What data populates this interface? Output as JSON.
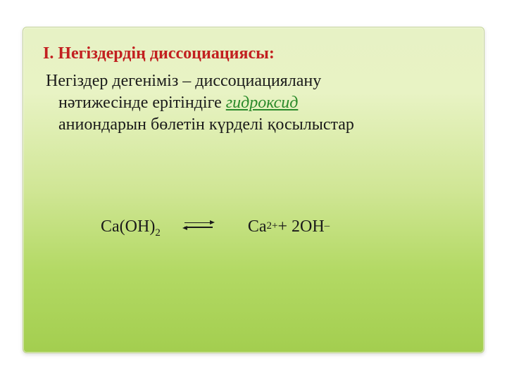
{
  "slide": {
    "heading": "I. Негіздердің диссоциациясы:",
    "definition_line1": "Негіздер дегеніміз – диссоциациялану",
    "definition_line2_before": "нәтижесінде ерітіндіге ",
    "definition_term": "гидроксид",
    "definition_line3": "аниондарын бөлетін күрделі қосылыстар",
    "equation": {
      "left_main": "Ca(OH)",
      "left_sub": "2",
      "right_ca": "Ca",
      "right_ca_sup": "2+",
      "right_plus": " + 2OH",
      "right_oh_sup": "–"
    }
  },
  "colors": {
    "heading": "#c22020",
    "body_text": "#1a1a1a",
    "term": "#2a8a2a"
  }
}
